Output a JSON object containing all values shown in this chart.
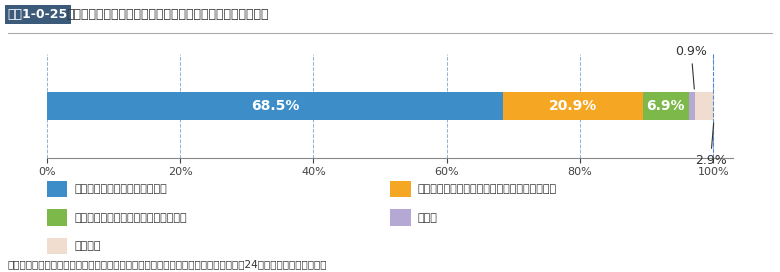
{
  "title": "図表1-0-25　震災後の地方公共団体における情報提供に当たっての課題点",
  "title_label": "図表1-0-25",
  "title_text": "震災後の地方公共団体における情報提供に当たっての課題点",
  "segments": [
    68.5,
    20.9,
    6.9,
    0.9,
    2.9
  ],
  "colors": [
    "#3c8dc8",
    "#f5a623",
    "#7db94a",
    "#b5a8d5",
    "#f0ddd0"
  ],
  "labels_inside": [
    "68.5%",
    "20.9%",
    "6.9%",
    "",
    ""
  ],
  "labels_outside_top": [
    "",
    "",
    "",
    "0.9%",
    ""
  ],
  "labels_outside_bottom": [
    "",
    "",
    "",
    "",
    "2.9%"
  ],
  "legend_items": [
    "迅速・適確な情報を確実に提供",
    "被害や避難・安否に関する情報を継続的に提供",
    "生活情報等について，きめ細かく提供",
    "その他",
    "特にない"
  ],
  "legend_colors": [
    "#3c8dc8",
    "#f5a623",
    "#7db94a",
    "#b5a8d5",
    "#f0ddd0"
  ],
  "source_text": "出典：総務省「地域におけるＩＣＴ利活用の現状及び経済効果に関する調査」（平成24年）をもとに内閣府作成",
  "xticks": [
    0,
    20,
    40,
    60,
    80,
    100
  ],
  "xlim": [
    0,
    103
  ],
  "background_color": "#ffffff",
  "bar_height": 0.55,
  "figsize": [
    7.8,
    2.72
  ],
  "dpi": 100
}
